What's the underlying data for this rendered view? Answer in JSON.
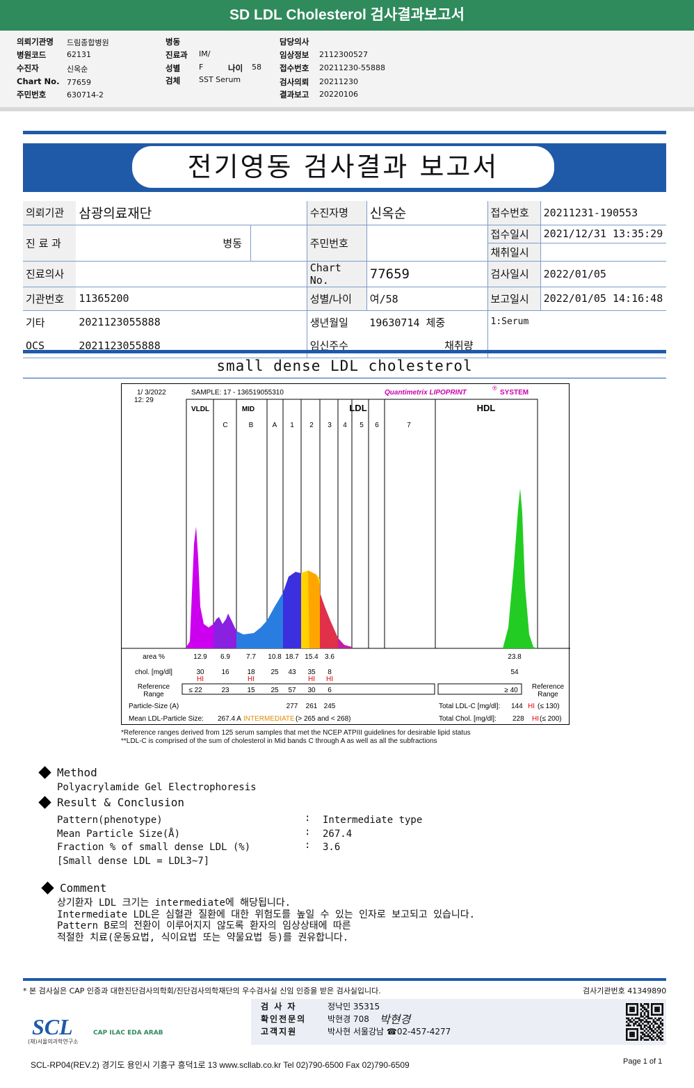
{
  "banner_title": "SD LDL Cholesterol 검사결과보고서",
  "top_info": {
    "col1": [
      {
        "label": "의뢰기관명",
        "value": "드림종합병원"
      },
      {
        "label": "병원코드",
        "value": "62131"
      },
      {
        "label": "수진자",
        "value": "신옥순"
      },
      {
        "label": "Chart No.",
        "value": "77659"
      },
      {
        "label": "주민번호",
        "value": "630714-2"
      }
    ],
    "col2": [
      {
        "label": "병동",
        "value": ""
      },
      {
        "label": "진료과",
        "value": "IM/"
      },
      {
        "label": "성별",
        "value": "F"
      },
      {
        "label": "검체",
        "value": "SST Serum"
      }
    ],
    "age_label": "나이",
    "age_value": "58",
    "col3": [
      {
        "label": "담당의사",
        "value": ""
      },
      {
        "label": "임상정보",
        "value": "2112300527"
      },
      {
        "label": "접수번호",
        "value": "20211230-55888"
      },
      {
        "label": "검사의뢰",
        "value": "20211230"
      },
      {
        "label": "결과보고",
        "value": "20220106"
      }
    ]
  },
  "report_title": "전기영동 검사결과 보고서",
  "info_table": {
    "r1": {
      "l1": "의뢰기관",
      "v1": "삼광의료재단",
      "l2": "수진자명",
      "v2": "신옥순",
      "l3": "접수번호",
      "v3": "20211231-190553"
    },
    "r2": {
      "l1": "진 료 과",
      "v1": "병동",
      "l2": "주민번호",
      "v2": "",
      "l3": "접수일시",
      "v3": "2021/12/31 13:35:29"
    },
    "r2b": {
      "l3": "채취일시",
      "v3": ""
    },
    "r3": {
      "l1": "진료의사",
      "v1": "",
      "l2": "Chart No.",
      "v2": "77659",
      "l3": "검사일시",
      "v3": "2022/01/05"
    },
    "r4": {
      "l1": "기관번호",
      "v1": "11365200",
      "l2": "성별/나이",
      "v2": "여/58",
      "l3": "보고일시",
      "v3": "2022/01/05 14:16:48"
    },
    "r5": {
      "l1": "기타",
      "v1": "2021123055888",
      "l2": "생년월일",
      "v2": "19630714",
      "v2b": "체중",
      "v3": "1:Serum"
    },
    "r6": {
      "l1": "OCS",
      "v1": "2021123055888",
      "l2": "임신주수",
      "v2": "채취량"
    }
  },
  "section_title": "small dense LDL cholesterol",
  "chart_data": {
    "type": "area",
    "header": {
      "date": "1/ 3/2022",
      "time": "12: 29",
      "sample_label": "SAMPLE:",
      "sample_value": "17 - 136519055310",
      "brand": "Quantimetrix LIPOPRINT",
      "brand_suffix": "SYSTEM",
      "brand_mark": "®"
    },
    "groups": [
      "VLDL",
      "MID",
      "LDL",
      "HDL"
    ],
    "bands": [
      "C",
      "B",
      "A",
      "1",
      "2",
      "3",
      "4",
      "5",
      "6",
      "7"
    ],
    "fraction_labels": [
      "VLDL",
      "MID C",
      "MID B",
      "MID A",
      "LDL1",
      "LDL2",
      "LDL3",
      "LDL4",
      "LDL5",
      "LDL6",
      "LDL7",
      "HDL"
    ],
    "area_pct": [
      "12.9",
      "6.9",
      "7.7",
      "10.8",
      "18.7",
      "15.4",
      "3.6",
      "23.8"
    ],
    "chol_mgdl": [
      "30",
      "16",
      "18",
      "25",
      "43",
      "35",
      "8",
      "54"
    ],
    "hi_flags": [
      "HI",
      "HI",
      "HI",
      "HI"
    ],
    "reference": [
      "≤ 22",
      "23",
      "15",
      "25",
      "57",
      "30",
      "6",
      "≥ 40"
    ],
    "row_labels": {
      "area": "area %",
      "chol": "chol. [mg/dl]",
      "ref1": "Reference",
      "ref2": "Range",
      "psize": "Particle-Size (A)",
      "mean": "Mean LDL-Particle Size:",
      "ref_right1": "Reference",
      "ref_right2": "Range"
    },
    "particle_size": [
      "277",
      "261",
      "245"
    ],
    "mean_size": "267.4",
    "mean_unit": "A",
    "mean_class": "INTERMEDIATE",
    "mean_range": "(> 265 and < 268)",
    "total_ldlc_label": "Total LDL-C [mg/dl]:",
    "total_ldlc": "144",
    "total_ldlc_flag": "HI",
    "total_ldlc_ref": "(≤ 130)",
    "total_chol_label": "Total Chol. [mg/dl]:",
    "total_chol": "228",
    "total_chol_flag": "HI",
    "total_chol_ref": "(≤ 200)",
    "colors": {
      "VLDL": "#cc00ee",
      "MID": "#8a20e0",
      "MID_A": "#2a7de0",
      "LDL1": "#3b2fe0",
      "LDL2": "#ffd200",
      "LDL3": "#ffa500",
      "LDL4": "#e0304a",
      "HDL": "#22cc22"
    }
  },
  "footnotes": [
    "*Reference ranges derived from 125 serum samples that met the NCEP ATPIII guidelines for desirable lipid status",
    "**LDL-C is comprised of the sum of cholesterol in Mid bands C through A as well as all the subfractions"
  ],
  "method": {
    "heading": "Method",
    "text": "Polyacrylamide Gel Electrophoresis"
  },
  "result": {
    "heading": "Result & Conclusion",
    "rows": [
      {
        "label": "Pattern(phenotype)",
        "value": "Intermediate type"
      },
      {
        "label": "Mean Particle Size(Å)",
        "value": "267.4"
      },
      {
        "label": "Fraction % of small dense LDL (%)",
        "value": "3.6"
      }
    ],
    "note": "[Small dense LDL = LDL3~7]",
    "sep": ":"
  },
  "comment": {
    "heading": "Comment",
    "lines": [
      "상기환자 LDL 크기는 intermediate에 해당됩니다.",
      "Intermediate LDL은 심혈관 질환에 대한 위험도를 높일 수 있는 인자로 보고되고 있습니다.",
      "Pattern B로의 전환이 이루어지지 않도록 환자의 임상상태에 따른",
      "적절한 치료(운동요법, 식이요법 또는 약물요법 등)를 권유합니다."
    ]
  },
  "footer": {
    "note": "* 본 검사실은 CAP 인증과 대한진단검사의학회/진단검사의학재단의 우수검사실 신임 인증을 받은 검사실입니다.",
    "org_code": "검사기관번호 41349890",
    "staff": [
      {
        "role": "검 사 자",
        "name": "정낙민 35315"
      },
      {
        "role": "확인전문의",
        "name": "박현경 708"
      },
      {
        "role": "고객지원",
        "name": "박사현 서울강남 ☎02-457-4277"
      }
    ],
    "signature": "박현경",
    "logo": "SCL",
    "logo_sub": "(재)서울의과학연구소",
    "certs": "CAP  ILAC  EDA  ARAB",
    "address": "SCL-RP04(REV.2)  경기도 용인시 기흥구 흥덕1로 13  www.scllab.co.kr  Tel 02)790-6500  Fax 02)790-6509",
    "page": "Page 1 of 1"
  }
}
